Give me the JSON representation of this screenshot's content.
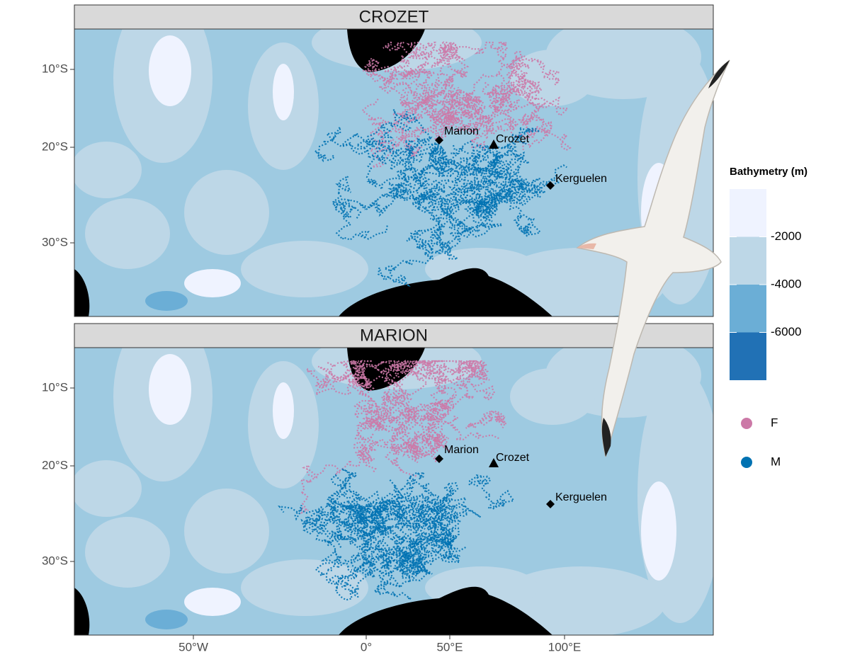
{
  "panels": [
    {
      "title": "CROZET"
    },
    {
      "title": "MARION"
    }
  ],
  "y_axis_labels": [
    "10°S",
    "20°S",
    "30°S"
  ],
  "x_axis_labels": [
    "50°W",
    "0°",
    "50°E",
    "100°E"
  ],
  "colonies": [
    "Marion",
    "Crozet",
    "Kerguelen"
  ],
  "bathymetry_legend": {
    "title": "Bathymetry (m)",
    "labels": [
      "-2000",
      "-4000",
      "-6000"
    ],
    "colors": [
      "#eff3ff",
      "#bdd7e7",
      "#6baed6",
      "#2171b5"
    ]
  },
  "sex_legend": {
    "labels": [
      "F",
      "M"
    ],
    "colors": [
      "#cc79a7",
      "#0072b2"
    ]
  }
}
